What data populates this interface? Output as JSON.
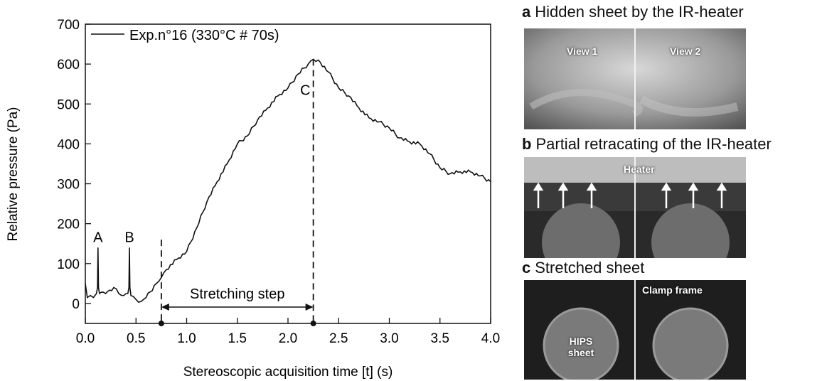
{
  "chart_data": {
    "type": "line",
    "xlabel": "Stereoscopic acquisition time [t] (s)",
    "ylabel": "Relative pressure (Pa)",
    "xlim": [
      0.0,
      4.0
    ],
    "ylim": [
      -50,
      700
    ],
    "xticks": [
      "0.0",
      "0.5",
      "1.0",
      "1.5",
      "2.0",
      "2.5",
      "3.0",
      "3.5",
      "4.0"
    ],
    "xtick_values": [
      0,
      0.5,
      1,
      1.5,
      2,
      2.5,
      3,
      3.5,
      4
    ],
    "yticks": [
      "0",
      "100",
      "200",
      "300",
      "400",
      "500",
      "600",
      "700"
    ],
    "ytick_values": [
      0,
      100,
      200,
      300,
      400,
      500,
      600,
      700
    ],
    "legend": "top-left",
    "series": [
      {
        "name": "Exp.n°16 (330°C # 70s)",
        "color": "#111111",
        "x": [
          0.0,
          0.02,
          0.05,
          0.08,
          0.11,
          0.12,
          0.125,
          0.13,
          0.14,
          0.18,
          0.22,
          0.28,
          0.33,
          0.38,
          0.42,
          0.43,
          0.435,
          0.44,
          0.45,
          0.5,
          0.55,
          0.6,
          0.7,
          0.75,
          0.8,
          0.9,
          1.0,
          1.1,
          1.2,
          1.3,
          1.4,
          1.5,
          1.6,
          1.7,
          1.8,
          1.9,
          2.0,
          2.1,
          2.2,
          2.25,
          2.3,
          2.4,
          2.5,
          2.6,
          2.7,
          2.8,
          2.9,
          3.0,
          3.1,
          3.2,
          3.3,
          3.4,
          3.5,
          3.6,
          3.7,
          3.8,
          3.9,
          4.0
        ],
        "y": [
          50,
          15,
          20,
          15,
          25,
          40,
          140,
          40,
          25,
          28,
          30,
          40,
          25,
          20,
          25,
          40,
          140,
          40,
          20,
          10,
          5,
          15,
          50,
          65,
          85,
          110,
          130,
          190,
          255,
          305,
          350,
          400,
          420,
          460,
          490,
          520,
          540,
          575,
          600,
          612,
          610,
          580,
          540,
          520,
          490,
          465,
          455,
          440,
          415,
          405,
          400,
          375,
          340,
          325,
          330,
          330,
          320,
          305
        ]
      }
    ],
    "annotations": [
      {
        "text": "A",
        "x": 0.125,
        "y": 140
      },
      {
        "text": "B",
        "x": 0.435,
        "y": 140
      },
      {
        "text": "C",
        "x": 2.25,
        "y": 612
      },
      {
        "text": "Stretching step",
        "x_start": 0.75,
        "x_end": 2.25
      }
    ],
    "vlines": [
      {
        "x": 0.75,
        "y_top": 160
      },
      {
        "x": 2.25,
        "y_top": 612
      }
    ]
  },
  "panels": [
    {
      "letter": "a",
      "title": "Hidden sheet by the IR-heater",
      "labels": [
        "View 1",
        "View 2"
      ]
    },
    {
      "letter": "b",
      "title": "Partial retracating of the IR-heater",
      "labels": [
        "Heater"
      ]
    },
    {
      "letter": "c",
      "title": "Stretched sheet",
      "labels": [
        "HIPS sheet",
        "Clamp frame"
      ]
    }
  ]
}
